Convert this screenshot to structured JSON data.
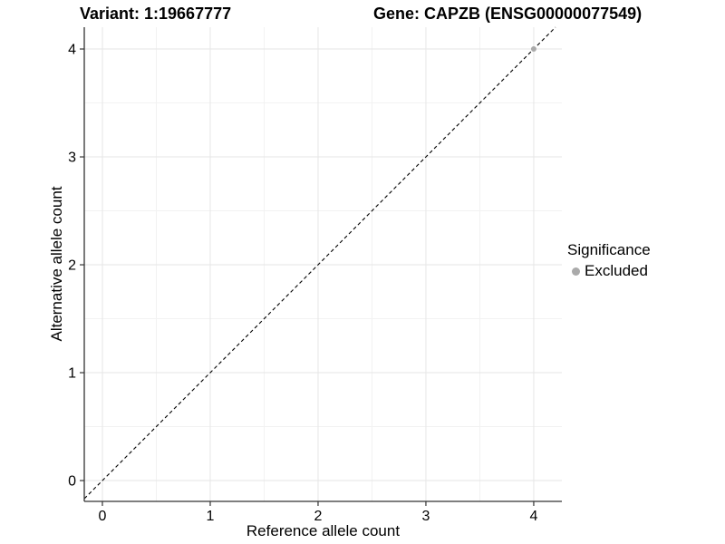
{
  "header": {
    "variant_title": "Variant: 1:19667777",
    "gene_title": "Gene: CAPZB (ENSG00000077549)"
  },
  "legend": {
    "title": "Significance",
    "items": [
      {
        "label": "Excluded",
        "color": "#aaaaaa"
      }
    ]
  },
  "chart_data": {
    "type": "scatter",
    "title": "Variant: 1:19667777   Gene: CAPZB (ENSG00000077549)",
    "xlabel": "Reference allele count",
    "ylabel": "Alternative allele count",
    "xlim": [
      -0.168,
      4.261
    ],
    "ylim": [
      -0.193,
      4.202
    ],
    "x_ticks": [
      0,
      1,
      2,
      3,
      4
    ],
    "y_ticks": [
      0,
      1,
      2,
      3,
      4
    ],
    "minor_ticks_x": [
      0.5,
      1.5,
      2.5,
      3.5
    ],
    "minor_ticks_y": [
      0.5,
      1.5,
      2.5,
      3.5
    ],
    "grid": true,
    "legend_position": "right",
    "series": [
      {
        "name": "Excluded",
        "color": "#aaaaaa",
        "point_radius": 3,
        "points": [
          {
            "x": 4,
            "y": 4
          }
        ]
      }
    ],
    "reference_line": {
      "type": "abline",
      "slope": 1,
      "intercept": 0,
      "style": "dashed",
      "color": "#000000"
    }
  },
  "colors": {
    "background": "#ffffff",
    "grid_major": "#e6e6e6",
    "grid_minor": "#f2f2f2",
    "axis_line": "#333333",
    "text": "#000000"
  }
}
